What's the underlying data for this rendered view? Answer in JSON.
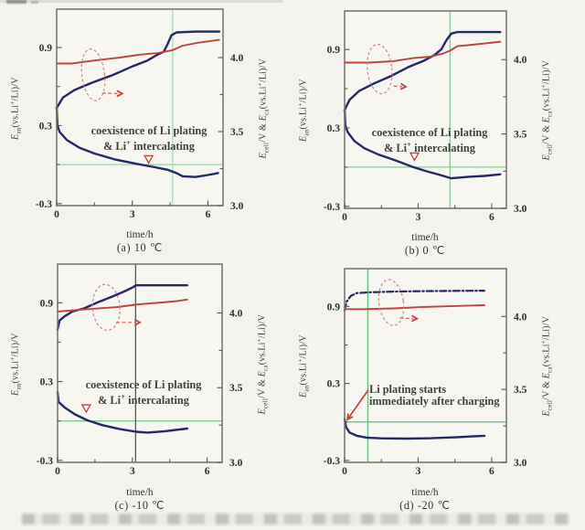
{
  "figure": {
    "background": "#f4f3ef",
    "navy_color": "#232a63",
    "red_color": "#c4403b",
    "annotation_red": "#c5403a",
    "frame_color": "#7a796f"
  },
  "chart_data": {
    "type": "line",
    "description_note": "Four-panel scanned figure: electrode potentials and cell voltage vs time during charging at different temperatures",
    "axes": {
      "x": {
        "label": "time/h",
        "min": 0,
        "max": 6.6,
        "ticks": [
          {
            "v": 0,
            "t": "0"
          },
          {
            "v": 3,
            "t": "3"
          },
          {
            "v": 6,
            "t": "6"
          }
        ],
        "minor": [
          1.5,
          4.5
        ]
      },
      "y_left": {
        "label": "*E*_{an}(vs.Li^{+}/Li)/V",
        "min": -0.315,
        "max": 1.19,
        "ticks": [
          {
            "v": 0.9,
            "t": "0.9"
          },
          {
            "v": 0.3,
            "t": "0.3"
          },
          {
            "v": -0.3,
            "t": "-0.3"
          }
        ],
        "minor": [
          0.6,
          0.0
        ]
      },
      "y_right": {
        "label": "*E*_{cell}/V & *E*_{ca}(vs.Li^{+}/Li)/V",
        "min": 3.0,
        "max": 4.33,
        "ticks": [
          {
            "v": 4.0,
            "t": "4.0"
          },
          {
            "v": 3.5,
            "t": "3.5"
          },
          {
            "v": 3.0,
            "t": "3.0"
          }
        ],
        "minor": [
          3.75,
          3.25
        ]
      }
    },
    "subplots": [
      {
        "id": "a",
        "caption": "(a) 10 ℃",
        "xlabel": "time/h",
        "hline": {
          "y": 0.0,
          "color": "#96d2a8"
        },
        "vline": {
          "x": 4.6,
          "color": "#a5dcb6"
        },
        "series": [
          {
            "name": "cell-voltage",
            "axis": "right",
            "color": "#232a63",
            "width": 2.4,
            "dash": "",
            "points": [
              [
                0,
                3.66
              ],
              [
                0.25,
                3.73
              ],
              [
                0.7,
                3.78
              ],
              [
                1.4,
                3.83
              ],
              [
                2.2,
                3.88
              ],
              [
                3.0,
                3.94
              ],
              [
                3.6,
                3.98
              ],
              [
                4.0,
                4.02
              ],
              [
                4.25,
                4.04
              ],
              [
                4.4,
                4.09
              ],
              [
                4.55,
                4.15
              ],
              [
                4.75,
                4.17
              ],
              [
                5.5,
                4.175
              ],
              [
                6.45,
                4.175
              ]
            ]
          },
          {
            "name": "cathode-potential",
            "axis": "right",
            "color": "#c4403b",
            "width": 1.9,
            "dash": "",
            "points": [
              [
                0,
                3.96
              ],
              [
                0.6,
                3.96
              ],
              [
                1.5,
                3.98
              ],
              [
                2.5,
                4.0
              ],
              [
                3.3,
                4.02
              ],
              [
                4.0,
                4.03
              ],
              [
                4.6,
                4.05
              ],
              [
                5.0,
                4.08
              ],
              [
                5.6,
                4.1
              ],
              [
                6.45,
                4.12
              ]
            ]
          },
          {
            "name": "anode-potential",
            "axis": "left",
            "color": "#232a63",
            "width": 2.4,
            "dash": "",
            "points": [
              [
                0,
                0.44
              ],
              [
                0.03,
                0.3
              ],
              [
                0.12,
                0.25
              ],
              [
                0.4,
                0.19
              ],
              [
                0.9,
                0.13
              ],
              [
                1.5,
                0.085
              ],
              [
                2.3,
                0.04
              ],
              [
                3.2,
                0.005
              ],
              [
                3.9,
                -0.02
              ],
              [
                4.4,
                -0.04
              ],
              [
                4.75,
                -0.065
              ],
              [
                5.0,
                -0.09
              ],
              [
                5.5,
                -0.095
              ],
              [
                6.0,
                -0.08
              ],
              [
                6.4,
                -0.065
              ]
            ]
          }
        ],
        "ellipse": {
          "cx": 1.45,
          "cy": 0.69,
          "rx": 0.45,
          "ry": 0.2,
          "rot": -7
        },
        "dashed_arrow": {
          "x1": 1.8,
          "y1": 0.55,
          "x2": 2.6,
          "y2": 0.545
        },
        "triangle": {
          "x": 3.65,
          "y": 0.04
        },
        "note": {
          "lines": [
            "coexistence of Li plating",
            "& Li^{+} intercalating"
          ]
        },
        "solid_arrow": null
      },
      {
        "id": "b",
        "caption": "(b) 0 ℃",
        "xlabel": "time/h",
        "hline": {
          "y": 0.0,
          "color": "#86cb9b"
        },
        "vline": {
          "x": 4.3,
          "color": "#86cb9b"
        },
        "series": [
          {
            "name": "cell-voltage",
            "axis": "right",
            "color": "#232a63",
            "width": 2.4,
            "dash": "",
            "points": [
              [
                0,
                3.66
              ],
              [
                0.2,
                3.73
              ],
              [
                0.6,
                3.79
              ],
              [
                1.2,
                3.84
              ],
              [
                1.9,
                3.89
              ],
              [
                2.6,
                3.95
              ],
              [
                3.2,
                3.99
              ],
              [
                3.65,
                4.03
              ],
              [
                3.95,
                4.07
              ],
              [
                4.15,
                4.13
              ],
              [
                4.35,
                4.175
              ],
              [
                4.6,
                4.185
              ],
              [
                6.35,
                4.185
              ]
            ]
          },
          {
            "name": "cathode-potential",
            "axis": "right",
            "color": "#c4403b",
            "width": 1.9,
            "dash": "",
            "points": [
              [
                0,
                3.98
              ],
              [
                1.0,
                3.98
              ],
              [
                2.0,
                3.99
              ],
              [
                2.8,
                4.01
              ],
              [
                3.5,
                4.02
              ],
              [
                4.0,
                4.04
              ],
              [
                4.3,
                4.06
              ],
              [
                4.6,
                4.09
              ],
              [
                5.2,
                4.1
              ],
              [
                6.35,
                4.12
              ]
            ]
          },
          {
            "name": "anode-potential",
            "axis": "left",
            "color": "#232a63",
            "width": 2.4,
            "dash": "",
            "points": [
              [
                0,
                0.44
              ],
              [
                0.03,
                0.32
              ],
              [
                0.12,
                0.27
              ],
              [
                0.4,
                0.2
              ],
              [
                0.8,
                0.145
              ],
              [
                1.4,
                0.095
              ],
              [
                2.1,
                0.05
              ],
              [
                2.8,
                0.0
              ],
              [
                3.4,
                -0.035
              ],
              [
                3.9,
                -0.06
              ],
              [
                4.35,
                -0.085
              ],
              [
                5.0,
                -0.075
              ],
              [
                5.7,
                -0.067
              ],
              [
                6.35,
                -0.055
              ]
            ]
          }
        ],
        "ellipse": {
          "cx": 1.43,
          "cy": 0.75,
          "rx": 0.5,
          "ry": 0.19,
          "rot": -6
        },
        "dashed_arrow": {
          "x1": 2.0,
          "y1": 0.62,
          "x2": 2.5,
          "y2": 0.615
        },
        "triangle": {
          "x": 2.85,
          "y": 0.08
        },
        "note": {
          "lines": [
            "coexistence of Li plating",
            "& Li^{+} intercalating"
          ]
        },
        "solid_arrow": null
      },
      {
        "id": "c",
        "caption": "(c) -10 ℃",
        "xlabel": "time/h",
        "hline": {
          "y": 0.0,
          "color": "#63bd82"
        },
        "vline": {
          "x": 3.13,
          "color": "#4f584f"
        },
        "series": [
          {
            "name": "cell-voltage",
            "axis": "right",
            "color": "#232a63",
            "width": 2.4,
            "dash": "",
            "points": [
              [
                0,
                3.89
              ],
              [
                0.08,
                3.95
              ],
              [
                0.3,
                3.98
              ],
              [
                0.6,
                4.01
              ],
              [
                1.05,
                4.03
              ],
              [
                1.6,
                4.07
              ],
              [
                2.2,
                4.11
              ],
              [
                2.75,
                4.15
              ],
              [
                3.0,
                4.17
              ],
              [
                3.15,
                4.185
              ],
              [
                5.2,
                4.185
              ]
            ]
          },
          {
            "name": "cathode-potential",
            "axis": "right",
            "color": "#c4403b",
            "width": 1.9,
            "dash": "",
            "points": [
              [
                0,
                4.01
              ],
              [
                0.8,
                4.02
              ],
              [
                1.6,
                4.03
              ],
              [
                2.4,
                4.04
              ],
              [
                3.1,
                4.055
              ],
              [
                3.4,
                4.06
              ],
              [
                4.2,
                4.07
              ],
              [
                4.8,
                4.08
              ],
              [
                5.2,
                4.09
              ]
            ]
          },
          {
            "name": "anode-potential",
            "axis": "left",
            "color": "#232a63",
            "width": 2.4,
            "dash": "",
            "points": [
              [
                0,
                0.22
              ],
              [
                0.04,
                0.145
              ],
              [
                0.3,
                0.1
              ],
              [
                0.7,
                0.05
              ],
              [
                1.2,
                0.005
              ],
              [
                1.8,
                -0.032
              ],
              [
                2.5,
                -0.062
              ],
              [
                3.15,
                -0.082
              ],
              [
                3.6,
                -0.088
              ],
              [
                4.3,
                -0.078
              ],
              [
                5.2,
                -0.058
              ]
            ]
          }
        ],
        "ellipse": {
          "cx": 1.95,
          "cy": 0.865,
          "rx": 0.55,
          "ry": 0.175,
          "rot": -4
        },
        "dashed_arrow": {
          "x1": 2.35,
          "y1": 0.75,
          "x2": 3.3,
          "y2": 0.75
        },
        "triangle": {
          "x": 1.15,
          "y": 0.095
        },
        "note": {
          "lines": [
            "coexistence of Li plating",
            "& Li^{+} intercalating"
          ]
        },
        "solid_arrow": null
      },
      {
        "id": "d",
        "caption": "(d) -20 ℃",
        "xlabel": "time/h",
        "hline": {
          "y": 0.0,
          "color": "#5fbd80"
        },
        "vline": {
          "x": 0.95,
          "color": "#5fbd80"
        },
        "series": [
          {
            "name": "cell-voltage",
            "axis": "right",
            "color": "#232a63",
            "width": 2.2,
            "dash": "7 3 1.5 3",
            "points": [
              [
                0,
                4.04
              ],
              [
                0.08,
                4.1
              ],
              [
                0.25,
                4.14
              ],
              [
                0.5,
                4.16
              ],
              [
                1.0,
                4.165
              ],
              [
                2.0,
                4.17
              ],
              [
                3.5,
                4.174
              ],
              [
                5.7,
                4.176
              ]
            ]
          },
          {
            "name": "cathode-potential",
            "axis": "right",
            "color": "#c4403b",
            "width": 1.9,
            "dash": "",
            "points": [
              [
                0,
                4.05
              ],
              [
                0.8,
                4.05
              ],
              [
                2.0,
                4.055
              ],
              [
                3.2,
                4.065
              ],
              [
                4.3,
                4.07
              ],
              [
                5.2,
                4.075
              ],
              [
                5.7,
                4.077
              ]
            ]
          },
          {
            "name": "anode-potential",
            "axis": "left",
            "color": "#232a63",
            "width": 2.4,
            "dash": "",
            "points": [
              [
                0,
                0.02
              ],
              [
                0.06,
                -0.04
              ],
              [
                0.2,
                -0.082
              ],
              [
                0.5,
                -0.108
              ],
              [
                0.9,
                -0.122
              ],
              [
                1.5,
                -0.128
              ],
              [
                2.5,
                -0.13
              ],
              [
                3.5,
                -0.127
              ],
              [
                4.5,
                -0.12
              ],
              [
                5.2,
                -0.113
              ],
              [
                5.7,
                -0.108
              ]
            ]
          }
        ],
        "ellipse": {
          "cx": 1.9,
          "cy": 0.93,
          "rx": 0.5,
          "ry": 0.18,
          "rot": -8
        },
        "dashed_arrow": {
          "x1": 2.25,
          "y1": 0.81,
          "x2": 2.95,
          "y2": 0.805
        },
        "triangle": null,
        "note": {
          "lines": [
            "Li plating  starts",
            "immediately after charging"
          ]
        },
        "solid_arrow": {
          "x1": 0.97,
          "y1": 0.25,
          "x2": 0.12,
          "y2": 0.02
        }
      }
    ]
  }
}
